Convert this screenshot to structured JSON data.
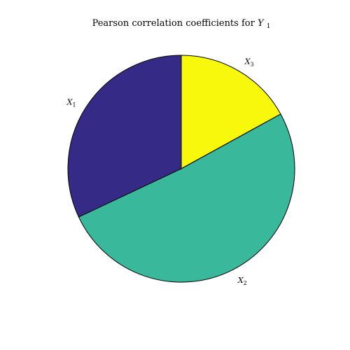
{
  "chart_data": {
    "type": "pie",
    "title": {
      "text": "Pearson correlation coefficients for",
      "var": "Y",
      "var_sub": "1"
    },
    "start_angle_deg": 90,
    "direction": "clockwise",
    "slices": [
      {
        "name": "X",
        "sub": "3",
        "value": 0.17,
        "color": "#f8f80c"
      },
      {
        "name": "X",
        "sub": "2",
        "value": 0.51,
        "color": "#39b89c"
      },
      {
        "name": "X",
        "sub": "1",
        "value": 0.32,
        "color": "#352a86"
      }
    ],
    "edge_color": "#000000",
    "legend": "none"
  }
}
